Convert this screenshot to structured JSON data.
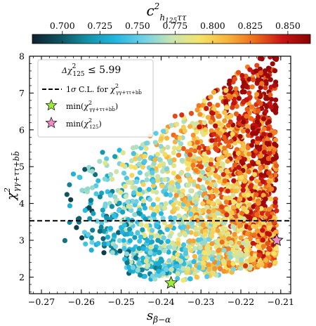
{
  "chart_data": {
    "type": "scatter",
    "xlabel": "s_{β−α}",
    "ylabel": "χ²_{γγ+ττ+bb̄}",
    "xlim": [
      -0.273,
      -0.2075
    ],
    "ylim": [
      1.55,
      8.0
    ],
    "x_ticks": [
      -0.27,
      -0.26,
      -0.25,
      -0.24,
      -0.23,
      -0.22,
      -0.21
    ],
    "x_tick_labels": [
      "−0.27",
      "−0.26",
      "−0.25",
      "−0.24",
      "−0.23",
      "−0.22",
      "−0.21"
    ],
    "y_ticks": [
      2,
      3,
      4,
      5,
      6,
      7,
      8
    ],
    "y_tick_labels": [
      "2",
      "3",
      "4",
      "5",
      "6",
      "7",
      "8"
    ],
    "colorbar": {
      "label": "c²_{h125ττ}",
      "range": [
        0.68,
        0.865
      ],
      "ticks": [
        0.7,
        0.725,
        0.75,
        0.775,
        0.8,
        0.825,
        0.85
      ],
      "tick_labels": [
        "0.700",
        "0.725",
        "0.750",
        "0.775",
        "0.800",
        "0.825",
        "0.850"
      ],
      "colormap": [
        "#0f2230",
        "#0f5360",
        "#1393a8",
        "#22b7e0",
        "#6fd0e6",
        "#c7e4b3",
        "#f4e46a",
        "#f7b53c",
        "#ee6c1b",
        "#c81313",
        "#8a0404"
      ]
    },
    "threshold_line": {
      "y": 3.53,
      "style": "dashed",
      "label": "1σ C.L. for χ²_{γγ+ττ+bb̄}"
    },
    "legend": {
      "title": "Δχ²₁₂₅ ≤ 5.99",
      "placement": "top-left",
      "entries": [
        {
          "label": "1σ C.L. for χ²_{γγ+ττ+bb̄}",
          "marker": "dashed-line"
        },
        {
          "label": "min(χ²_{γγ+ττ+bb̄})",
          "marker": "star",
          "color": "#9dea3c"
        },
        {
          "label": "min(χ²₁₂₅)",
          "marker": "star",
          "color": "#f08cc4"
        }
      ]
    },
    "highlight_points": [
      {
        "name": "min(χ²_{γγ+ττ+bb̄})",
        "x": -0.2375,
        "y": 1.84,
        "color": "#9dea3c"
      },
      {
        "name": "min(χ²₁₂₅)",
        "x": -0.211,
        "y": 3.0,
        "color": "#f08cc4"
      }
    ],
    "scatter_region": {
      "x_range": [
        -0.265,
        -0.211
      ],
      "y_range": [
        1.85,
        8.0
      ],
      "point_color_trend": "c² rises toward larger s_{β−α} (right side) and larger χ²"
    }
  }
}
